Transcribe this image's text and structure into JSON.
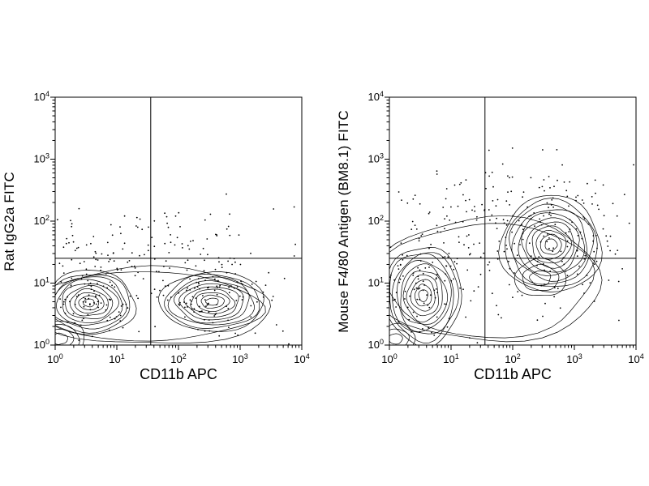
{
  "figure": {
    "background": "#ffffff",
    "line_color": "#000000"
  },
  "chart_data": [
    {
      "type": "contour",
      "title": "",
      "xlabel": "CD11b APC",
      "ylabel": "Rat IgG2a FITC",
      "xscale": "log",
      "yscale": "log",
      "x_exp_range": [
        0,
        4
      ],
      "y_exp_range": [
        0,
        4
      ],
      "tick_base": "10",
      "x_tick_exponents": [
        0,
        1,
        2,
        3,
        4
      ],
      "y_tick_exponents": [
        0,
        1,
        2,
        3,
        4
      ],
      "grid": false,
      "legend": false,
      "quadrant_gate_exp": {
        "x": 1.55,
        "y": 1.4
      },
      "populations": [
        {
          "cx": 0.55,
          "cy": 0.68,
          "rx": 0.75,
          "ry": 0.52,
          "levels": 10,
          "min_scale": 0.12
        },
        {
          "cx": 0.08,
          "cy": 0.1,
          "rx": 0.4,
          "ry": 0.3,
          "levels": 4,
          "min_scale": 0.3
        },
        {
          "cx": 2.55,
          "cy": 0.7,
          "rx": 0.85,
          "ry": 0.48,
          "levels": 10,
          "min_scale": 0.12
        },
        {
          "cx": 1.55,
          "cy": 0.62,
          "rx": 1.95,
          "ry": 0.62,
          "levels": 2,
          "min_scale": 0.9
        }
      ],
      "scatter_clusters": [
        {
          "n": 120,
          "cx": 0.6,
          "cy": 0.85,
          "sx": 0.45,
          "sy": 0.4
        },
        {
          "n": 120,
          "cx": 2.55,
          "cy": 0.85,
          "sx": 0.48,
          "sy": 0.35
        },
        {
          "n": 90,
          "cx": 1.5,
          "cy": 1.5,
          "sx": 1.1,
          "sy": 0.35
        },
        {
          "n": 20,
          "cx": 1.8,
          "cy": 1.95,
          "sx": 0.9,
          "sy": 0.22
        }
      ]
    },
    {
      "type": "contour",
      "title": "",
      "xlabel": "CD11b APC",
      "ylabel": "Mouse F4/80 Antigen (BM8.1) FITC",
      "xscale": "log",
      "yscale": "log",
      "x_exp_range": [
        0,
        4
      ],
      "y_exp_range": [
        0,
        4
      ],
      "tick_base": "10",
      "x_tick_exponents": [
        0,
        1,
        2,
        3,
        4
      ],
      "y_tick_exponents": [
        0,
        1,
        2,
        3,
        4
      ],
      "grid": false,
      "legend": false,
      "quadrant_gate_exp": {
        "x": 1.55,
        "y": 1.4
      },
      "populations": [
        {
          "cx": 0.55,
          "cy": 0.8,
          "rx": 0.62,
          "ry": 0.8,
          "levels": 10,
          "min_scale": 0.12
        },
        {
          "cx": 0.1,
          "cy": 0.1,
          "rx": 0.32,
          "ry": 0.24,
          "levels": 3,
          "min_scale": 0.35
        },
        {
          "cx": 2.62,
          "cy": 1.62,
          "rx": 0.82,
          "ry": 0.78,
          "levels": 11,
          "min_scale": 0.12
        },
        {
          "cx": 2.45,
          "cy": 1.08,
          "rx": 0.42,
          "ry": 0.3,
          "levels": 3,
          "min_scale": 0.4
        },
        {
          "cx": 1.6,
          "cy": 1.05,
          "rx": 1.85,
          "ry": 1.0,
          "levels": 2,
          "min_scale": 0.92
        }
      ],
      "scatter_clusters": [
        {
          "n": 130,
          "cx": 0.55,
          "cy": 1.0,
          "sx": 0.45,
          "sy": 0.6
        },
        {
          "n": 150,
          "cx": 2.6,
          "cy": 1.6,
          "sx": 0.6,
          "sy": 0.55
        },
        {
          "n": 70,
          "cx": 2.1,
          "cy": 2.4,
          "sx": 0.8,
          "sy": 0.3
        },
        {
          "n": 28,
          "cx": 0.9,
          "cy": 1.95,
          "sx": 0.55,
          "sy": 0.25
        }
      ]
    }
  ]
}
